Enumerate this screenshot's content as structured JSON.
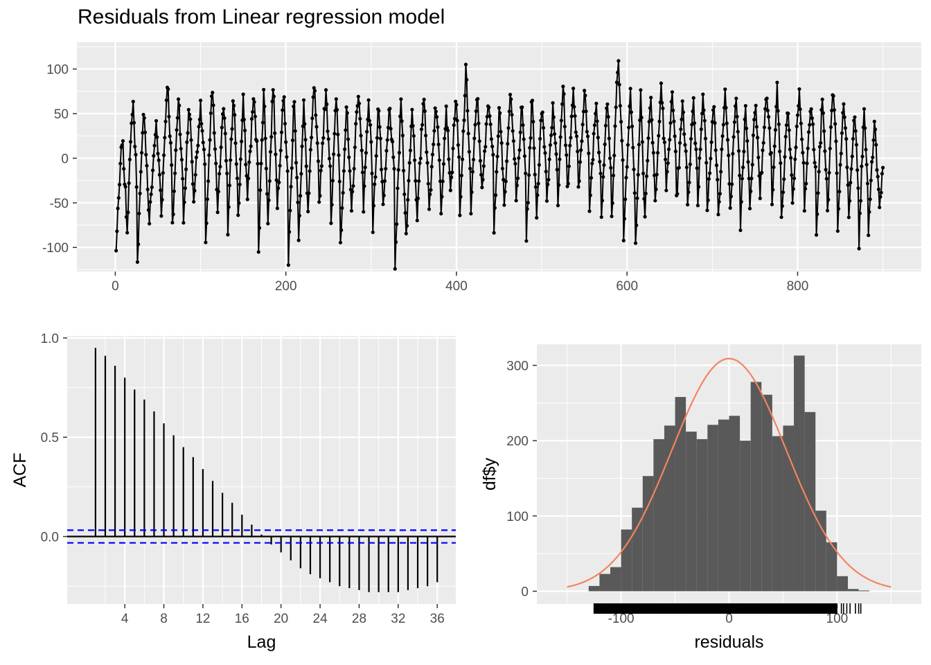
{
  "page": {
    "title": "Residuals from Linear regression model"
  },
  "colors": {
    "panel": "#ebebeb",
    "grid_major": "#ffffff",
    "line": "#000000",
    "ci": "#0000ff",
    "bar": "#595959",
    "density": "#f4845f",
    "axis_text": "#4d4d4d"
  },
  "chart_data": [
    {
      "type": "line",
      "title": "Residuals from Linear regression model",
      "xlabel": "",
      "ylabel": "",
      "xlim": [
        -45,
        945
      ],
      "ylim": [
        -127,
        130
      ],
      "x_ticks": [
        0,
        200,
        400,
        600,
        800
      ],
      "x_tick_labels": [
        "0",
        "200",
        "400",
        "600",
        "800"
      ],
      "y_ticks": [
        -100,
        -50,
        0,
        50,
        100
      ],
      "y_tick_labels": [
        "-100",
        "-50",
        "0",
        "50",
        "100"
      ],
      "grid": true,
      "series": [
        {
          "n_points": 900,
          "min": -124,
          "max": 122,
          "description_values": [
            -85,
            -98,
            -70,
            25,
            -30,
            70,
            -110,
            -65,
            20,
            60,
            30,
            90,
            -55,
            10,
            75,
            -60,
            -10,
            70,
            -70,
            0,
            80,
            -35,
            50,
            -80,
            70,
            -50,
            80,
            -45,
            -5,
            60,
            10,
            -55,
            -35,
            60,
            -110,
            -75,
            40,
            -120,
            -55,
            70,
            -60,
            65,
            -30,
            -40,
            -123,
            -40,
            85,
            -70,
            55,
            -45,
            -40,
            10,
            -10,
            60,
            -25,
            100,
            -20,
            75,
            -35,
            -60,
            -55,
            75,
            -50,
            -10,
            65,
            -5,
            -45,
            75,
            -55,
            55,
            -60,
            60,
            -40,
            -55,
            80,
            -65,
            10,
            60,
            -45,
            -45,
            70,
            -50,
            -25,
            25,
            -90,
            -50,
            65,
            -55,
            70,
            -40,
            -45,
            -40,
            120,
            -55,
            70,
            -45,
            55,
            -60,
            75,
            -10,
            -60,
            75,
            -70,
            55,
            -45,
            80,
            -70,
            70,
            -55,
            10,
            20,
            -60,
            -85,
            10,
            -65,
            70,
            -55,
            70,
            -40,
            25,
            60,
            -80,
            70,
            -55,
            40,
            -55,
            60,
            -80,
            -40,
            5,
            30,
            5
          ]
        }
      ]
    },
    {
      "type": "bar",
      "xlabel": "Lag",
      "ylabel": "ACF",
      "xlim": [
        -1.9,
        37.9
      ],
      "ylim": [
        -0.34,
        1.01
      ],
      "x_ticks": [
        4,
        8,
        12,
        16,
        20,
        24,
        28,
        32,
        36
      ],
      "x_tick_labels": [
        "4",
        "8",
        "12",
        "16",
        "20",
        "24",
        "28",
        "32",
        "36"
      ],
      "y_ticks": [
        0.0,
        0.5,
        1.0
      ],
      "y_tick_labels": [
        "0.0",
        "0.5",
        "1.0"
      ],
      "ci": 0.032,
      "lags": [
        1,
        2,
        3,
        4,
        5,
        6,
        7,
        8,
        9,
        10,
        11,
        12,
        13,
        14,
        15,
        16,
        17,
        18,
        19,
        20,
        21,
        22,
        23,
        24,
        25,
        26,
        27,
        28,
        29,
        30,
        31,
        32,
        33,
        34,
        35,
        36
      ],
      "values": [
        0.95,
        0.91,
        0.86,
        0.8,
        0.74,
        0.69,
        0.63,
        0.57,
        0.51,
        0.45,
        0.4,
        0.34,
        0.28,
        0.22,
        0.17,
        0.11,
        0.06,
        0.01,
        -0.04,
        -0.08,
        -0.12,
        -0.16,
        -0.19,
        -0.21,
        -0.23,
        -0.25,
        -0.26,
        -0.27,
        -0.28,
        -0.28,
        -0.28,
        -0.28,
        -0.27,
        -0.26,
        -0.25,
        -0.23
      ]
    },
    {
      "type": "bar",
      "xlabel": "residuals",
      "ylabel": "df$y",
      "xlim": [
        -178,
        178
      ],
      "ylim": [
        -17,
        328
      ],
      "x_ticks": [
        -100,
        0,
        100
      ],
      "x_tick_labels": [
        "-100",
        "0",
        "100"
      ],
      "y_ticks": [
        0,
        100,
        200,
        300
      ],
      "y_tick_labels": [
        "0",
        "100",
        "200",
        "300"
      ],
      "bin_width": 10,
      "bin_starts": [
        -130,
        -120,
        -110,
        -100,
        -90,
        -80,
        -70,
        -60,
        -50,
        -40,
        -30,
        -20,
        -10,
        0,
        10,
        20,
        30,
        40,
        50,
        60,
        70,
        80,
        90,
        100,
        110,
        120
      ],
      "counts": [
        7,
        23,
        32,
        82,
        111,
        153,
        202,
        220,
        258,
        212,
        202,
        221,
        228,
        233,
        200,
        278,
        261,
        206,
        220,
        313,
        238,
        107,
        65,
        20,
        3,
        1
      ],
      "density_curve": {
        "mean": 0,
        "sd": 53,
        "peak": 309,
        "range": [
          -150,
          150
        ]
      },
      "rug_range": [
        -125,
        122
      ]
    }
  ]
}
